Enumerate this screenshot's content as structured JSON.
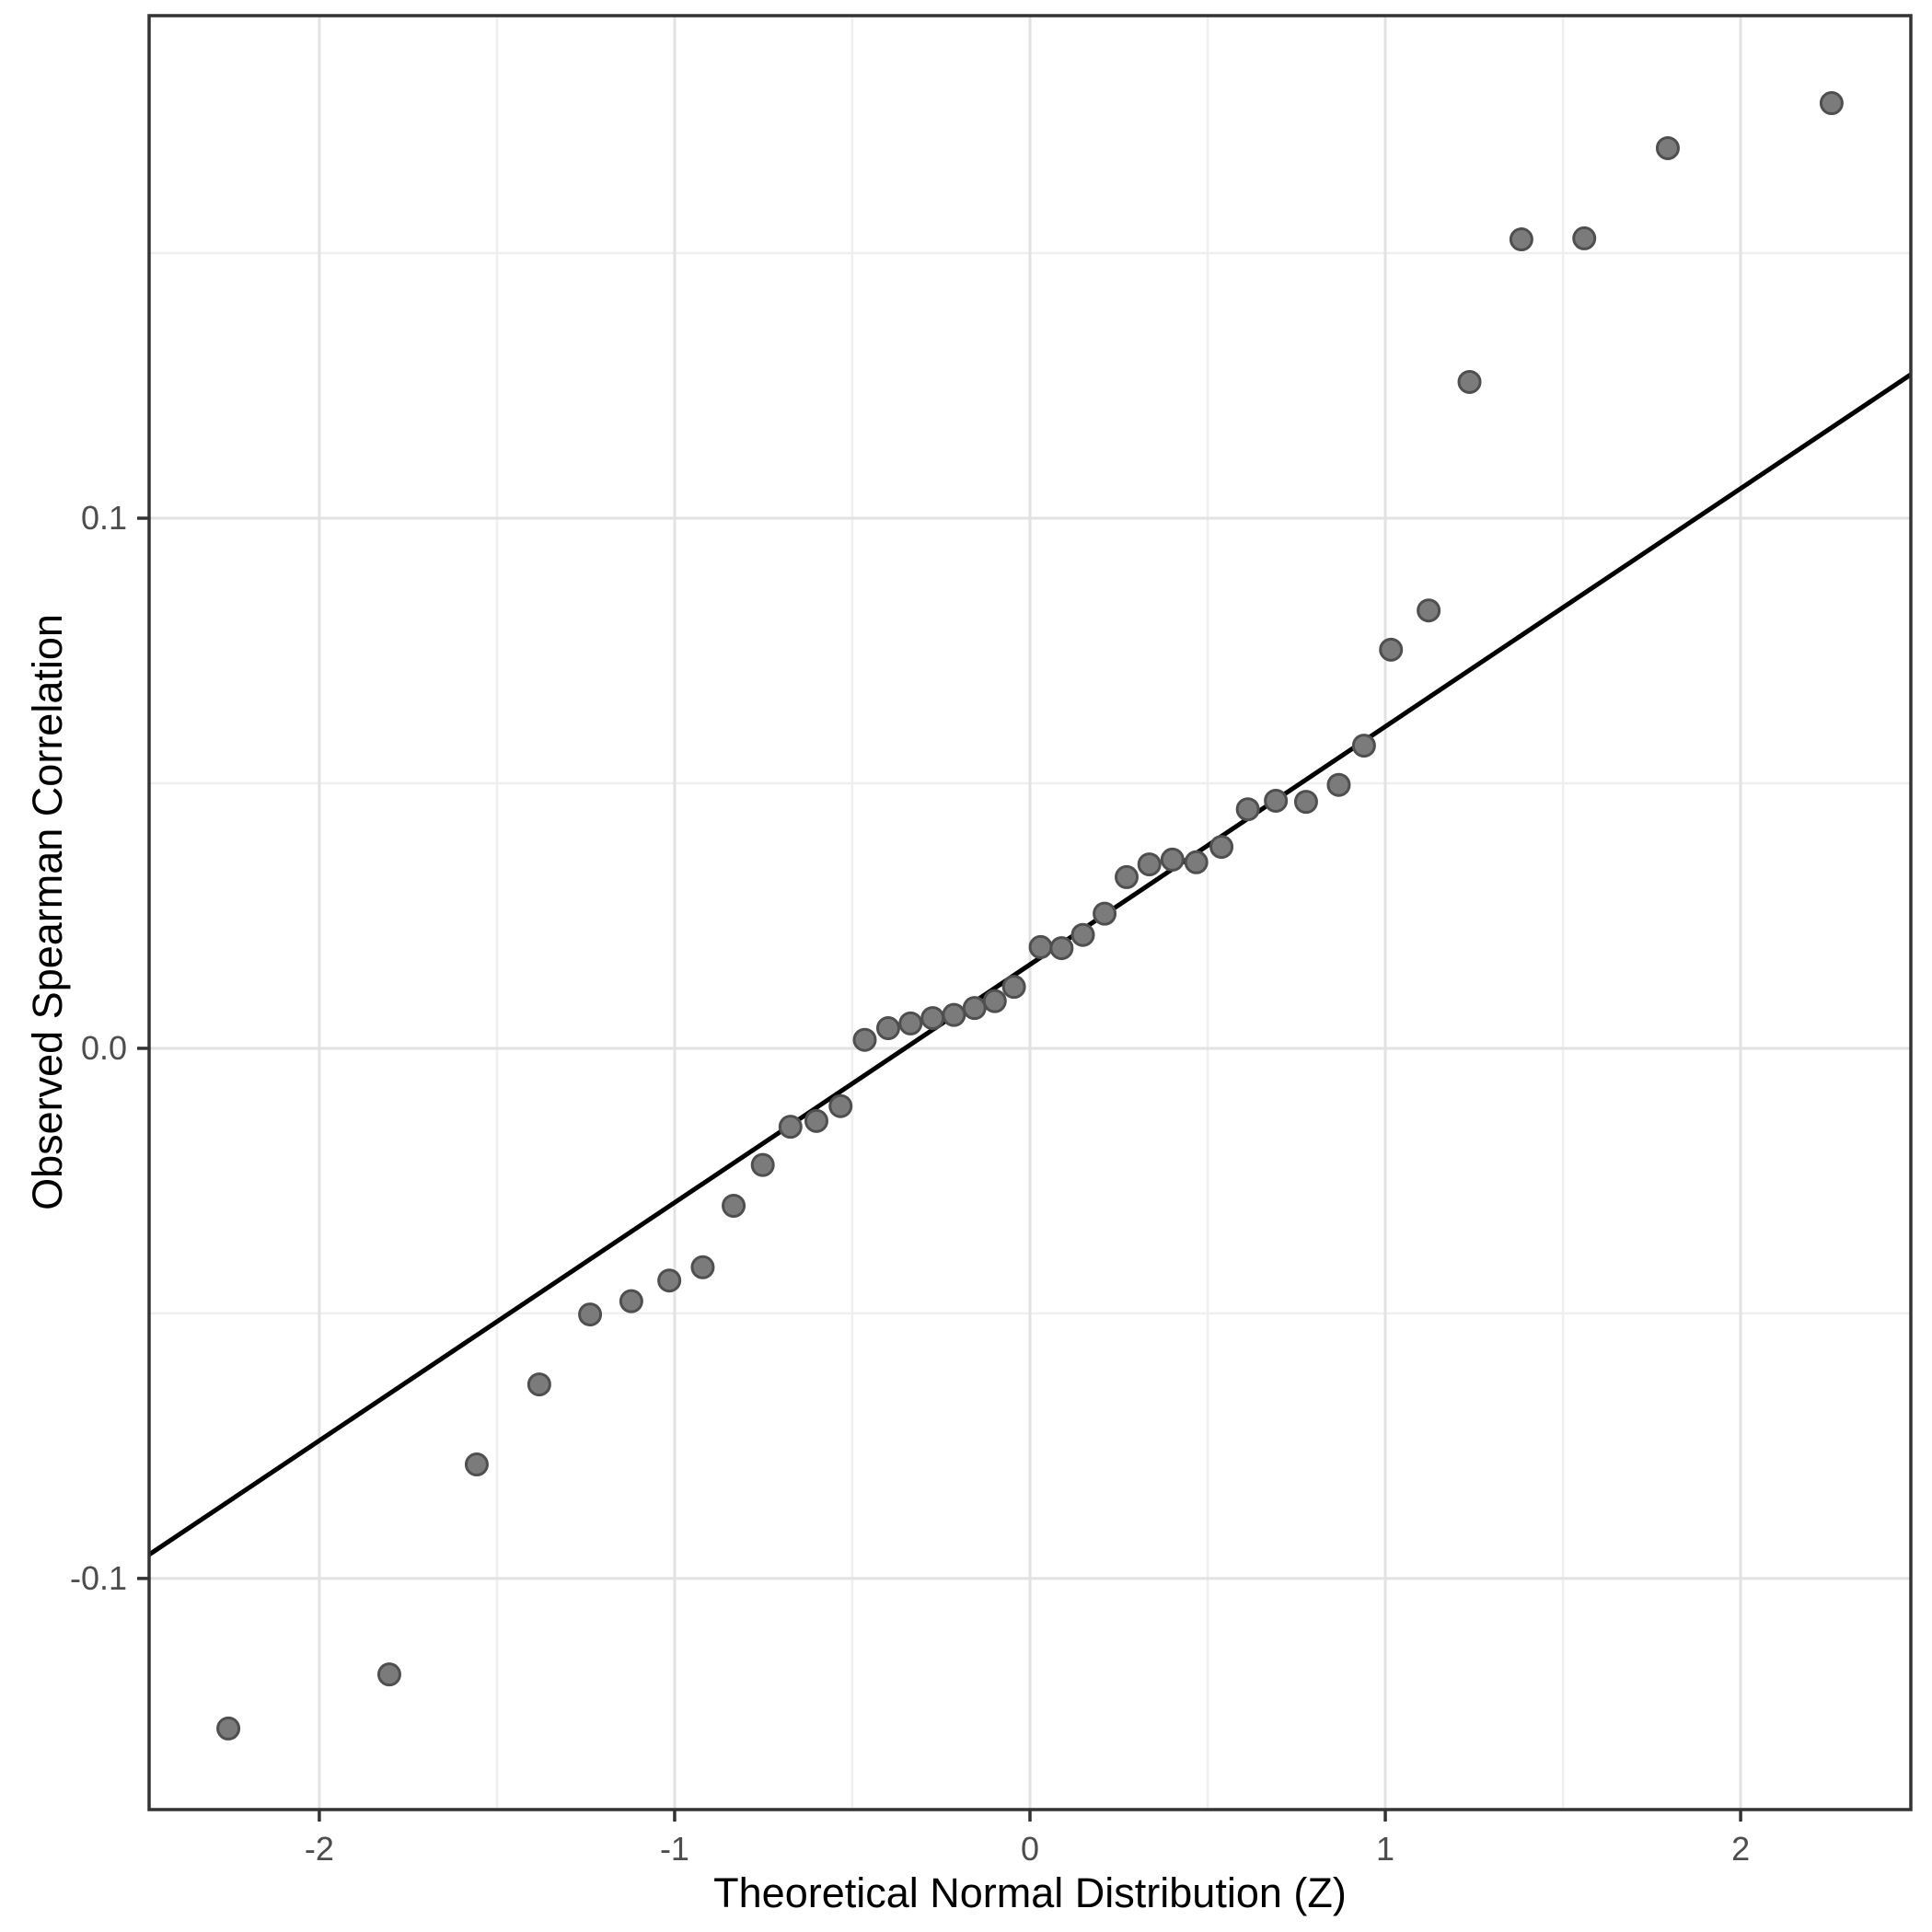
{
  "chart_data": {
    "type": "scatter",
    "title": "",
    "xlabel": "Theoretical Normal Distribution (Z)",
    "ylabel": "Observed Spearman Correlation",
    "xlim": [
      -2.479,
      2.479
    ],
    "ylim": [
      -0.1436,
      0.1948
    ],
    "legend": "none",
    "grid": "on",
    "x_ticks": [
      {
        "value": -2,
        "label": "-2"
      },
      {
        "value": -1,
        "label": "-1"
      },
      {
        "value": 0,
        "label": "0"
      },
      {
        "value": 1,
        "label": "1"
      },
      {
        "value": 2,
        "label": "2"
      }
    ],
    "y_ticks": [
      {
        "value": 0.1,
        "label": "0.1"
      },
      {
        "value": 0.0,
        "label": "0.0"
      },
      {
        "value": -0.1,
        "label": "-0.1"
      }
    ],
    "x_minor_gridlines": [
      -1.5,
      -0.5,
      0.5,
      1.5
    ],
    "y_minor_gridlines": [
      0.15,
      0.05,
      -0.05
    ],
    "reference_line": {
      "intercept": 0.0158,
      "slope": 0.0449
    },
    "points": [
      [
        -2.256,
        -0.1283
      ],
      [
        -1.803,
        -0.1181
      ],
      [
        -1.557,
        -0.0785
      ],
      [
        -1.381,
        -0.0634
      ],
      [
        -1.238,
        -0.0502
      ],
      [
        -1.122,
        -0.0477
      ],
      [
        -1.015,
        -0.0438
      ],
      [
        -0.921,
        -0.0413
      ],
      [
        -0.834,
        -0.0297
      ],
      [
        -0.752,
        -0.022
      ],
      [
        -0.674,
        -0.0148
      ],
      [
        -0.601,
        -0.0137
      ],
      [
        -0.533,
        -0.0109
      ],
      [
        -0.465,
        0.0016
      ],
      [
        -0.399,
        0.0038
      ],
      [
        -0.336,
        0.0047
      ],
      [
        -0.274,
        0.0057
      ],
      [
        -0.214,
        0.0063
      ],
      [
        -0.156,
        0.0076
      ],
      [
        -0.099,
        0.0089
      ],
      [
        -0.045,
        0.0116
      ],
      [
        0.03,
        0.0191
      ],
      [
        0.089,
        0.0189
      ],
      [
        0.149,
        0.0214
      ],
      [
        0.21,
        0.0254
      ],
      [
        0.272,
        0.0323
      ],
      [
        0.336,
        0.0347
      ],
      [
        0.401,
        0.0356
      ],
      [
        0.468,
        0.0351
      ],
      [
        0.539,
        0.038
      ],
      [
        0.613,
        0.0451
      ],
      [
        0.692,
        0.0467
      ],
      [
        0.777,
        0.0465
      ],
      [
        0.869,
        0.0497
      ],
      [
        0.94,
        0.0571
      ],
      [
        1.016,
        0.0752
      ],
      [
        1.122,
        0.0826
      ],
      [
        1.237,
        0.1257
      ],
      [
        1.383,
        0.1526
      ],
      [
        1.56,
        0.1528
      ],
      [
        1.795,
        0.1698
      ],
      [
        2.256,
        0.1783
      ]
    ],
    "colors": {
      "point_fill": "#7b7b7b",
      "point_stroke": "#4f4f4f",
      "reference_line": "#000000",
      "panel_border": "#333333",
      "major_grid": "#e2e2e2",
      "minor_grid": "#efefef",
      "tick_mark": "#333333",
      "tick_label": "#4d4d4d",
      "axis_title": "#000000",
      "background": "#ffffff"
    }
  }
}
